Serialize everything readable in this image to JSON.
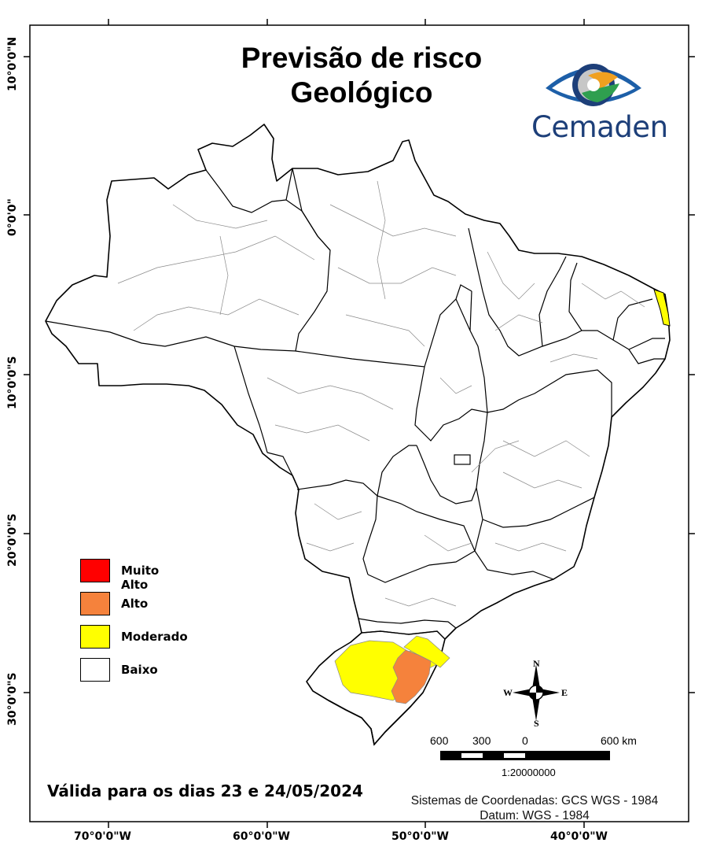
{
  "title": {
    "line1": "Previsão de risco",
    "line2": "Geológico"
  },
  "logo": {
    "text": "Cemaden",
    "icon": "eye-icon"
  },
  "legend": [
    {
      "label": "Muito Alto",
      "color": "#ff0000"
    },
    {
      "label": "Alto",
      "color": "#f5823c"
    },
    {
      "label": "Moderado",
      "color": "#ffff00"
    },
    {
      "label": "Baixo",
      "color": "#ffffff"
    }
  ],
  "validity": "Válida para os dias 23 e 24/05/2024",
  "coordinate_system": {
    "line1": "Sistemas de Coordenadas: GCS WGS - 1984",
    "line2": "Datum: WGS - 1984"
  },
  "axes": {
    "x_ticks": [
      "70°0'0\"W",
      "60°0'0\"W",
      "50°0'0\"W",
      "40°0'0\"W"
    ],
    "y_ticks": [
      "10°0'0\"N",
      "0°0'0\"",
      "10°0'0\"S",
      "20°0'0\"S",
      "30°0'0\"S"
    ]
  },
  "scale_bar": {
    "labels": [
      "600",
      "300",
      "0",
      "600 km"
    ],
    "ratio": "1:20000000"
  },
  "compass": {
    "n": "N",
    "s": "S",
    "e": "E",
    "w": "W"
  },
  "colors": {
    "outline": "#000000",
    "internal": "#8a8a8a",
    "moderado": "#ffff00",
    "alto": "#f5823c"
  }
}
